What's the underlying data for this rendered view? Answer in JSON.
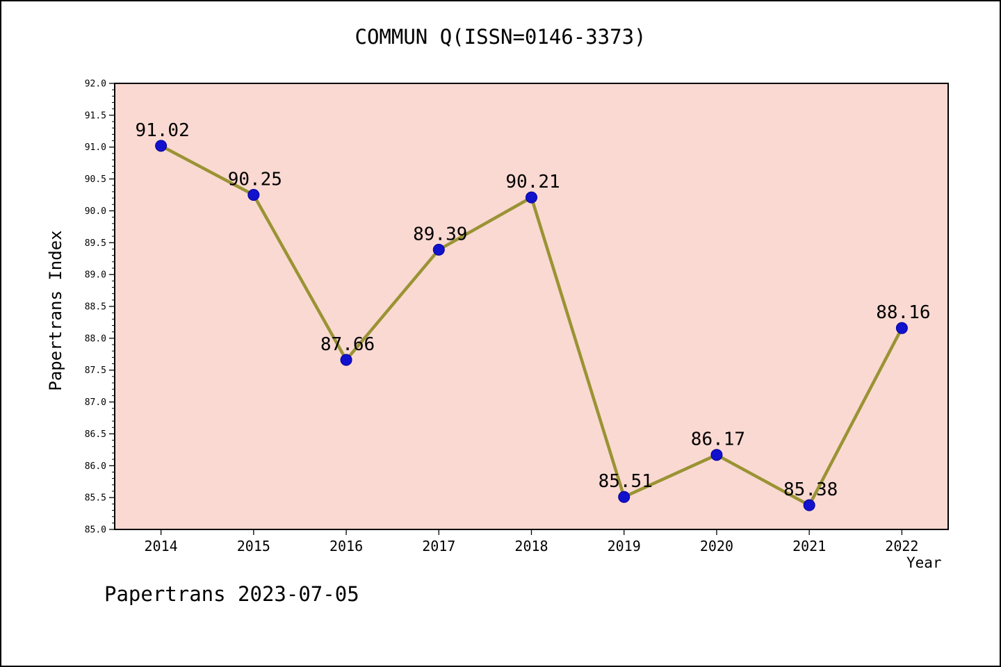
{
  "page": {
    "title": "COMMUN Q(ISSN=0146-3373)",
    "footer": "Papertrans 2023-07-05"
  },
  "chart_data": {
    "type": "line",
    "title": "COMMUN Q(ISSN=0146-3373)",
    "xlabel": "Year",
    "ylabel": "Papertrans Index",
    "categories": [
      "2014",
      "2015",
      "2016",
      "2017",
      "2018",
      "2019",
      "2020",
      "2021",
      "2022"
    ],
    "series": [
      {
        "name": "Papertrans Index",
        "values": [
          91.02,
          90.25,
          87.66,
          89.39,
          90.21,
          85.51,
          86.17,
          85.38,
          88.16
        ]
      }
    ],
    "point_labels": [
      "91.02",
      "90.25",
      "87.66",
      "89.39",
      "90.21",
      "85.51",
      "86.17",
      "85.38",
      "88.16"
    ],
    "ylim": [
      85.0,
      92.0
    ],
    "ytick_step": 0.5,
    "yticks": [
      "85.0",
      "85.5",
      "86.0",
      "86.5",
      "87.0",
      "87.5",
      "88.0",
      "88.5",
      "89.0",
      "89.5",
      "90.0",
      "90.5",
      "91.0",
      "91.5",
      "92.0"
    ],
    "grid": false,
    "legend": "none",
    "colors": {
      "line": "#9a9334",
      "marker": "#1212cc",
      "marker_edge": "#0000a0",
      "plot_bg": "#fad9d2",
      "axis": "#000000"
    }
  }
}
